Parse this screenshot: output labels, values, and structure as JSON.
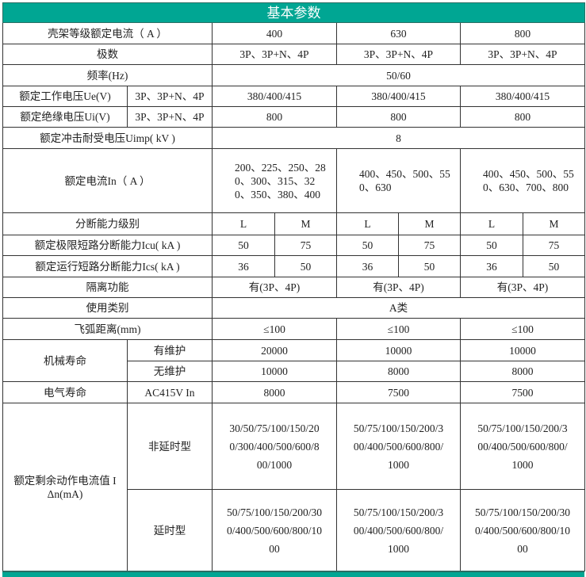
{
  "title": "基本参数",
  "frame_current": {
    "label": "壳架等级额定电流（ A ）",
    "values": [
      "400",
      "630",
      "800"
    ]
  },
  "poles": {
    "label": "极数",
    "values": [
      "3P、3P+N、4P",
      "3P、3P+N、4P",
      "3P、3P+N、4P"
    ]
  },
  "frequency": {
    "label": "频率(Hz)",
    "value": "50/60"
  },
  "ue": {
    "label": "额定工作电压Ue(V)",
    "sub": "3P、3P+N、4P",
    "values": [
      "380/400/415",
      "380/400/415",
      "380/400/415"
    ]
  },
  "ui": {
    "label": "额定绝缘电压Ui(V)",
    "sub": "3P、3P+N、4P",
    "values": [
      "800",
      "800",
      "800"
    ]
  },
  "uimp": {
    "label": "额定冲击耐受电压Uimp( kV )",
    "value": "8"
  },
  "in": {
    "label": "额定电流In（ A ）",
    "values": [
      "200、225、250、280、300、315、320、350、380、400",
      "400、450、500、550、630",
      "400、450、500、550、630、700、800"
    ]
  },
  "breaking_level": {
    "label": "分断能力级别",
    "values": [
      "L",
      "M",
      "L",
      "M",
      "L",
      "M"
    ]
  },
  "icu": {
    "label": "额定极限短路分断能力Icu( kA )",
    "values": [
      "50",
      "75",
      "50",
      "75",
      "50",
      "75"
    ]
  },
  "ics": {
    "label": "额定运行短路分断能力Ics( kA )",
    "values": [
      "36",
      "50",
      "36",
      "50",
      "36",
      "50"
    ]
  },
  "isolation": {
    "label": "隔离功能",
    "values": [
      "有(3P、4P)",
      "有(3P、4P)",
      "有(3P、4P)"
    ]
  },
  "category": {
    "label": "使用类别",
    "value": "A类"
  },
  "arc": {
    "label": "飞弧距离(mm)",
    "values": [
      "≤100",
      "≤100",
      "≤100"
    ]
  },
  "mech_life": {
    "label": "机械寿命",
    "with_maint": {
      "label": "有维护",
      "values": [
        "20000",
        "10000",
        "10000"
      ]
    },
    "without_maint": {
      "label": "无维护",
      "values": [
        "10000",
        "8000",
        "8000"
      ]
    }
  },
  "elec_life": {
    "label": "电气寿命",
    "sub": "AC415V In",
    "values": [
      "8000",
      "7500",
      "7500"
    ]
  },
  "residual": {
    "label": "额定剩余动作电流值 IΔn(mA)",
    "non_delay": {
      "label": "非延时型",
      "values": [
        "30/50/75/100/150/200/300/400/500/600/800/1000",
        "50/75/100/150/200/300/400/500/600/800/1000",
        "50/75/100/150/200/300/400/500/600/800/1000"
      ]
    },
    "delay": {
      "label": "延时型",
      "values": [
        "50/75/100/150/200/300/400/500/600/800/1000",
        "50/75/100/150/200/300/400/500/600/800/1000",
        "50/75/100/150/200/300/400/500/600/800/1000"
      ]
    }
  },
  "colors": {
    "header_bg": "#00a693",
    "header_text": "#ffffff",
    "border": "#333333"
  }
}
